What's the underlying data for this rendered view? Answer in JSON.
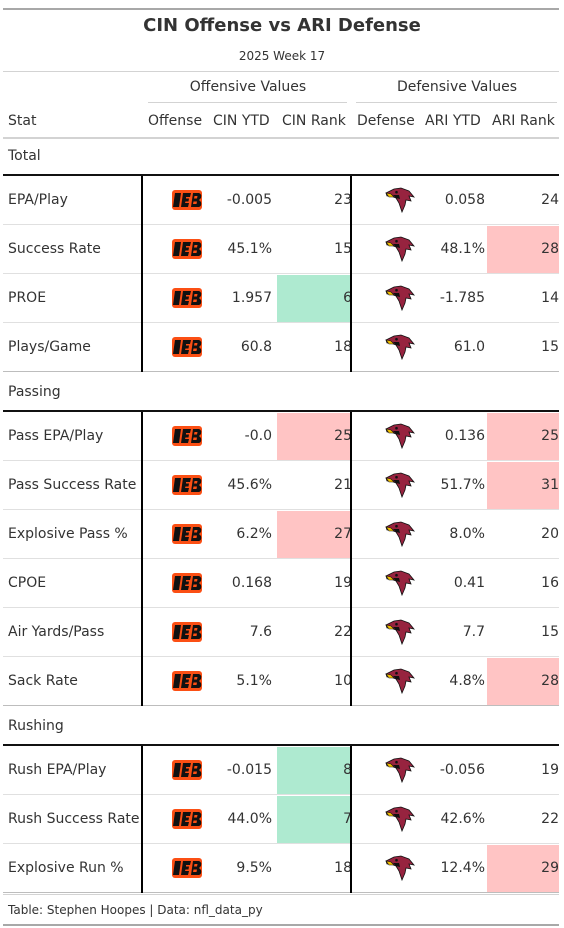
{
  "title": "CIN Offense vs ARI Defense",
  "subtitle": "2025 Week 17",
  "spanners": {
    "offense": "Offensive Values",
    "defense": "Defensive Values"
  },
  "columns": {
    "stat": "Stat",
    "offense": "Offense",
    "cin_ytd": "CIN YTD",
    "cin_rank": "CIN Rank",
    "defense": "Defense",
    "ari_ytd": "ARI YTD",
    "ari_rank": "ARI Rank"
  },
  "colors": {
    "good": "#aeead0",
    "bad": "#ffc4c4",
    "bengals_orange": "#fb4f14",
    "cardinals_red": "#97233f"
  },
  "logos": {
    "offense": "bengals-logo",
    "defense": "cardinals-logo"
  },
  "footer": "Table: Stephen Hoopes | Data: nfl_data_py",
  "chart_data": {
    "type": "table",
    "groups": [
      {
        "label": "Total",
        "rows": [
          {
            "stat": "EPA/Play",
            "cin_ytd": "-0.005",
            "cin_rank": "23",
            "cin_color": "",
            "ari_ytd": "0.058",
            "ari_rank": "24",
            "ari_color": ""
          },
          {
            "stat": "Success Rate",
            "cin_ytd": "45.1%",
            "cin_rank": "15",
            "cin_color": "",
            "ari_ytd": "48.1%",
            "ari_rank": "28",
            "ari_color": "bad"
          },
          {
            "stat": "PROE",
            "cin_ytd": "1.957",
            "cin_rank": "6",
            "cin_color": "good",
            "ari_ytd": "-1.785",
            "ari_rank": "14",
            "ari_color": ""
          },
          {
            "stat": "Plays/Game",
            "cin_ytd": "60.8",
            "cin_rank": "18",
            "cin_color": "",
            "ari_ytd": "61.0",
            "ari_rank": "15",
            "ari_color": ""
          }
        ]
      },
      {
        "label": "Passing",
        "rows": [
          {
            "stat": "Pass EPA/Play",
            "cin_ytd": "-0.0",
            "cin_rank": "25",
            "cin_color": "bad",
            "ari_ytd": "0.136",
            "ari_rank": "25",
            "ari_color": "bad"
          },
          {
            "stat": "Pass Success Rate",
            "cin_ytd": "45.6%",
            "cin_rank": "21",
            "cin_color": "",
            "ari_ytd": "51.7%",
            "ari_rank": "31",
            "ari_color": "bad"
          },
          {
            "stat": "Explosive Pass %",
            "cin_ytd": "6.2%",
            "cin_rank": "27",
            "cin_color": "bad",
            "ari_ytd": "8.0%",
            "ari_rank": "20",
            "ari_color": ""
          },
          {
            "stat": "CPOE",
            "cin_ytd": "0.168",
            "cin_rank": "19",
            "cin_color": "",
            "ari_ytd": "0.41",
            "ari_rank": "16",
            "ari_color": ""
          },
          {
            "stat": "Air Yards/Pass",
            "cin_ytd": "7.6",
            "cin_rank": "22",
            "cin_color": "",
            "ari_ytd": "7.7",
            "ari_rank": "15",
            "ari_color": ""
          },
          {
            "stat": "Sack Rate",
            "cin_ytd": "5.1%",
            "cin_rank": "10",
            "cin_color": "",
            "ari_ytd": "4.8%",
            "ari_rank": "28",
            "ari_color": "bad"
          }
        ]
      },
      {
        "label": "Rushing",
        "rows": [
          {
            "stat": "Rush EPA/Play",
            "cin_ytd": "-0.015",
            "cin_rank": "8",
            "cin_color": "good",
            "ari_ytd": "-0.056",
            "ari_rank": "19",
            "ari_color": ""
          },
          {
            "stat": "Rush Success Rate",
            "cin_ytd": "44.0%",
            "cin_rank": "7",
            "cin_color": "good",
            "ari_ytd": "42.6%",
            "ari_rank": "22",
            "ari_color": ""
          },
          {
            "stat": "Explosive Run %",
            "cin_ytd": "9.5%",
            "cin_rank": "18",
            "cin_color": "",
            "ari_ytd": "12.4%",
            "ari_rank": "29",
            "ari_color": "bad"
          }
        ]
      }
    ]
  }
}
